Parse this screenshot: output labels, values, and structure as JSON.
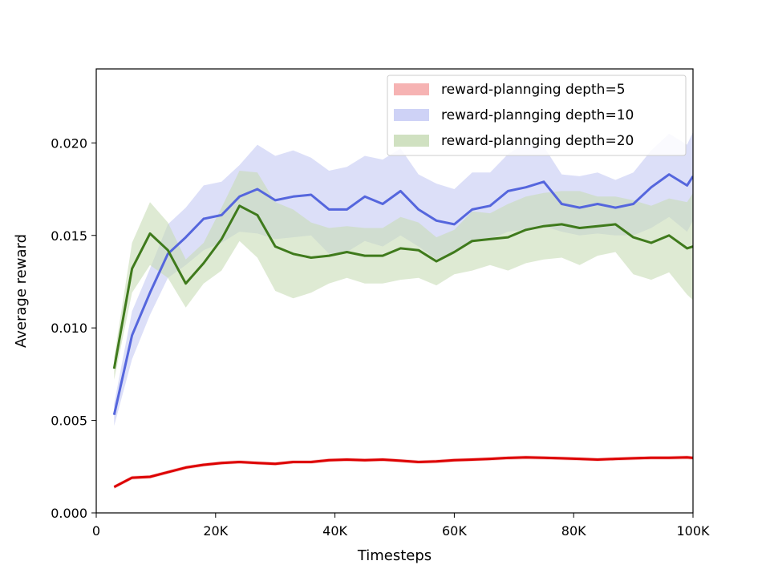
{
  "chart_data": {
    "type": "line",
    "title": "",
    "xlabel": "Timesteps",
    "ylabel": "Average reward",
    "xlim": [
      0,
      100000
    ],
    "ylim": [
      0.0,
      0.024
    ],
    "xticks": [
      0,
      20000,
      40000,
      60000,
      80000,
      100000
    ],
    "xtick_labels": [
      "0",
      "20K",
      "40K",
      "60K",
      "80K",
      "100K"
    ],
    "yticks": [
      0.0,
      0.005,
      0.01,
      0.015,
      0.02
    ],
    "ytick_labels": [
      "0.000",
      "0.005",
      "0.010",
      "0.015",
      "0.020"
    ],
    "grid": false,
    "legend_position": "top-right",
    "x": [
      3000,
      6000,
      9000,
      12000,
      15000,
      18000,
      21000,
      24000,
      27000,
      30000,
      33000,
      36000,
      39000,
      42000,
      45000,
      48000,
      51000,
      54000,
      57000,
      60000,
      63000,
      66000,
      69000,
      72000,
      75000,
      78000,
      81000,
      84000,
      87000,
      90000,
      93000,
      96000,
      99000,
      100000
    ],
    "series": [
      {
        "name": "reward-plannging depth=5",
        "color": "#dd0000",
        "band_color": "#f4a6a6",
        "values": [
          0.0014,
          0.0019,
          0.00195,
          0.0022,
          0.00245,
          0.0026,
          0.0027,
          0.00275,
          0.0027,
          0.00265,
          0.00275,
          0.00275,
          0.00285,
          0.00288,
          0.00285,
          0.00288,
          0.00282,
          0.00275,
          0.00278,
          0.00285,
          0.00288,
          0.00292,
          0.00297,
          0.003,
          0.00298,
          0.00295,
          0.00292,
          0.00288,
          0.00292,
          0.00295,
          0.00298,
          0.00298,
          0.003,
          0.00297
        ],
        "lower": [
          0.0013,
          0.0018,
          0.00185,
          0.0021,
          0.00235,
          0.0025,
          0.0026,
          0.00265,
          0.0026,
          0.00255,
          0.00265,
          0.00265,
          0.00275,
          0.00278,
          0.00275,
          0.00278,
          0.00272,
          0.00265,
          0.00268,
          0.00275,
          0.00278,
          0.00282,
          0.00287,
          0.0029,
          0.00288,
          0.00285,
          0.00282,
          0.00278,
          0.00282,
          0.00285,
          0.00288,
          0.00288,
          0.0029,
          0.00287
        ],
        "upper": [
          0.0015,
          0.002,
          0.00205,
          0.0023,
          0.00255,
          0.0027,
          0.0028,
          0.00285,
          0.0028,
          0.00275,
          0.00285,
          0.00285,
          0.00295,
          0.00298,
          0.00295,
          0.00298,
          0.00292,
          0.00285,
          0.00288,
          0.00295,
          0.00298,
          0.00302,
          0.00307,
          0.0031,
          0.00308,
          0.00305,
          0.00302,
          0.00298,
          0.00302,
          0.00305,
          0.00308,
          0.00308,
          0.0031,
          0.00307
        ]
      },
      {
        "name": "reward-plannging depth=10",
        "color": "#5566dd",
        "band_color": "#c5caf4",
        "values": [
          0.0053,
          0.0096,
          0.0119,
          0.014,
          0.0149,
          0.0159,
          0.0161,
          0.0171,
          0.0175,
          0.0169,
          0.0171,
          0.0172,
          0.0164,
          0.0164,
          0.0171,
          0.0167,
          0.0174,
          0.0164,
          0.0158,
          0.0156,
          0.0164,
          0.0166,
          0.0174,
          0.0176,
          0.0179,
          0.0167,
          0.0165,
          0.0167,
          0.0165,
          0.0167,
          0.0176,
          0.0183,
          0.0177,
          0.0182
        ],
        "lower": [
          0.0047,
          0.0083,
          0.0107,
          0.0127,
          0.0134,
          0.0142,
          0.0146,
          0.0152,
          0.0151,
          0.0148,
          0.0149,
          0.015,
          0.014,
          0.0141,
          0.0147,
          0.0144,
          0.015,
          0.0144,
          0.0137,
          0.0141,
          0.0146,
          0.0148,
          0.0152,
          0.0153,
          0.0155,
          0.0152,
          0.015,
          0.0151,
          0.015,
          0.015,
          0.0154,
          0.016,
          0.0152,
          0.0158
        ],
        "upper": [
          0.0059,
          0.0109,
          0.0132,
          0.0156,
          0.0165,
          0.0177,
          0.0179,
          0.0188,
          0.0199,
          0.0193,
          0.0196,
          0.0192,
          0.0185,
          0.0187,
          0.0193,
          0.0191,
          0.0197,
          0.0183,
          0.0178,
          0.0175,
          0.0184,
          0.0184,
          0.0194,
          0.02,
          0.0198,
          0.0183,
          0.0182,
          0.0184,
          0.018,
          0.0184,
          0.0196,
          0.0205,
          0.0199,
          0.0206
        ]
      },
      {
        "name": "reward-plannging depth=20",
        "color": "#3f7a1c",
        "band_color": "#c8dcb6",
        "values": [
          0.0078,
          0.0132,
          0.0151,
          0.0142,
          0.0124,
          0.0135,
          0.0148,
          0.0166,
          0.0161,
          0.0144,
          0.014,
          0.0138,
          0.0139,
          0.0141,
          0.0139,
          0.0139,
          0.0143,
          0.0142,
          0.0136,
          0.0141,
          0.0147,
          0.0148,
          0.0149,
          0.0153,
          0.0155,
          0.0156,
          0.0154,
          0.0155,
          0.0156,
          0.0149,
          0.0146,
          0.015,
          0.0143,
          0.0144
        ],
        "lower": [
          0.0072,
          0.0119,
          0.0134,
          0.0127,
          0.0111,
          0.0124,
          0.0131,
          0.0147,
          0.0138,
          0.012,
          0.0116,
          0.0119,
          0.0124,
          0.0127,
          0.0124,
          0.0124,
          0.0126,
          0.0127,
          0.0123,
          0.0129,
          0.0131,
          0.0134,
          0.0131,
          0.0135,
          0.0137,
          0.0138,
          0.0134,
          0.0139,
          0.0141,
          0.0129,
          0.0126,
          0.013,
          0.0118,
          0.0115
        ],
        "upper": [
          0.0084,
          0.0146,
          0.0168,
          0.0157,
          0.0137,
          0.0146,
          0.0165,
          0.0185,
          0.0184,
          0.0168,
          0.0164,
          0.0157,
          0.0154,
          0.0155,
          0.0154,
          0.0154,
          0.016,
          0.0157,
          0.0149,
          0.0153,
          0.0163,
          0.0162,
          0.0167,
          0.0171,
          0.0173,
          0.0174,
          0.0174,
          0.0171,
          0.0171,
          0.0169,
          0.0166,
          0.017,
          0.0168,
          0.0173
        ]
      }
    ]
  }
}
